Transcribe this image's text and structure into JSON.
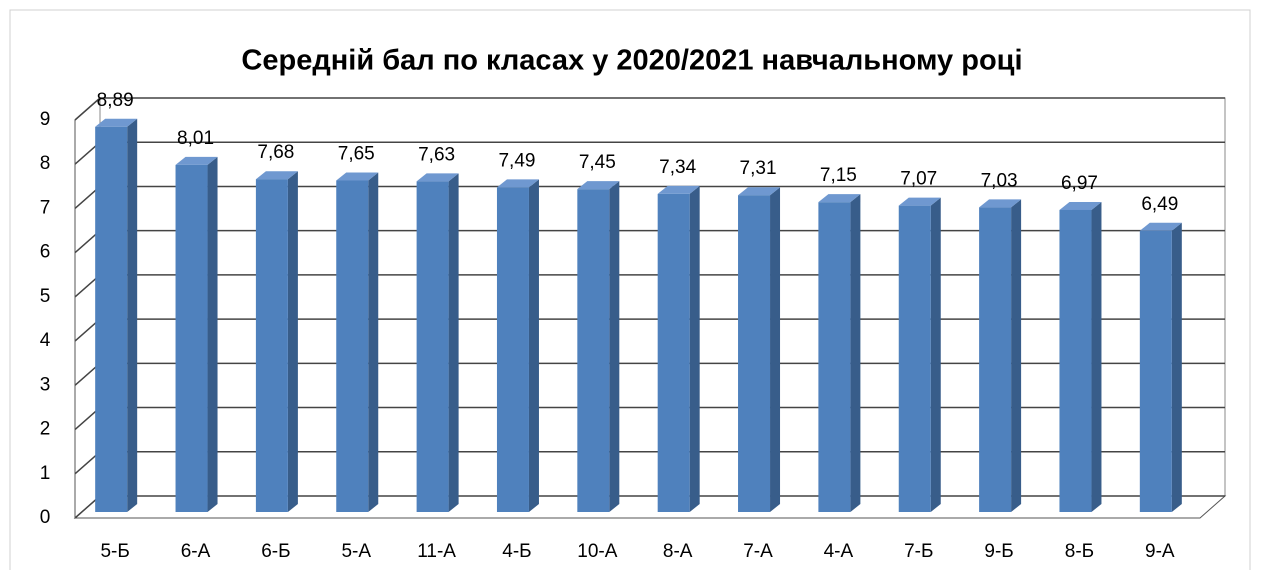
{
  "chart_data": {
    "type": "bar3d",
    "title": "Середній бал по класах у 2020/2021 навчальному році",
    "categories": [
      "5-Б",
      "6-А",
      "6-Б",
      "5-А",
      "11-А",
      "4-Б",
      "10-А",
      "8-А",
      "7-А",
      "4-А",
      "7-Б",
      "9-Б",
      "8-Б",
      "9-А"
    ],
    "values": [
      8.89,
      8.01,
      7.68,
      7.65,
      7.63,
      7.49,
      7.45,
      7.34,
      7.31,
      7.15,
      7.07,
      7.03,
      6.97,
      6.49
    ],
    "value_labels": [
      "8,89",
      "8,01",
      "7,68",
      "7,65",
      "7,63",
      "7,49",
      "7,45",
      "7,34",
      "7,31",
      "7,15",
      "7,07",
      "7,03",
      "6,97",
      "6,49"
    ],
    "color": "#4f81bd",
    "ylim": [
      0,
      9
    ],
    "yticks": [
      0,
      1,
      2,
      3,
      4,
      5,
      6,
      7,
      8,
      9
    ],
    "grid": true
  }
}
